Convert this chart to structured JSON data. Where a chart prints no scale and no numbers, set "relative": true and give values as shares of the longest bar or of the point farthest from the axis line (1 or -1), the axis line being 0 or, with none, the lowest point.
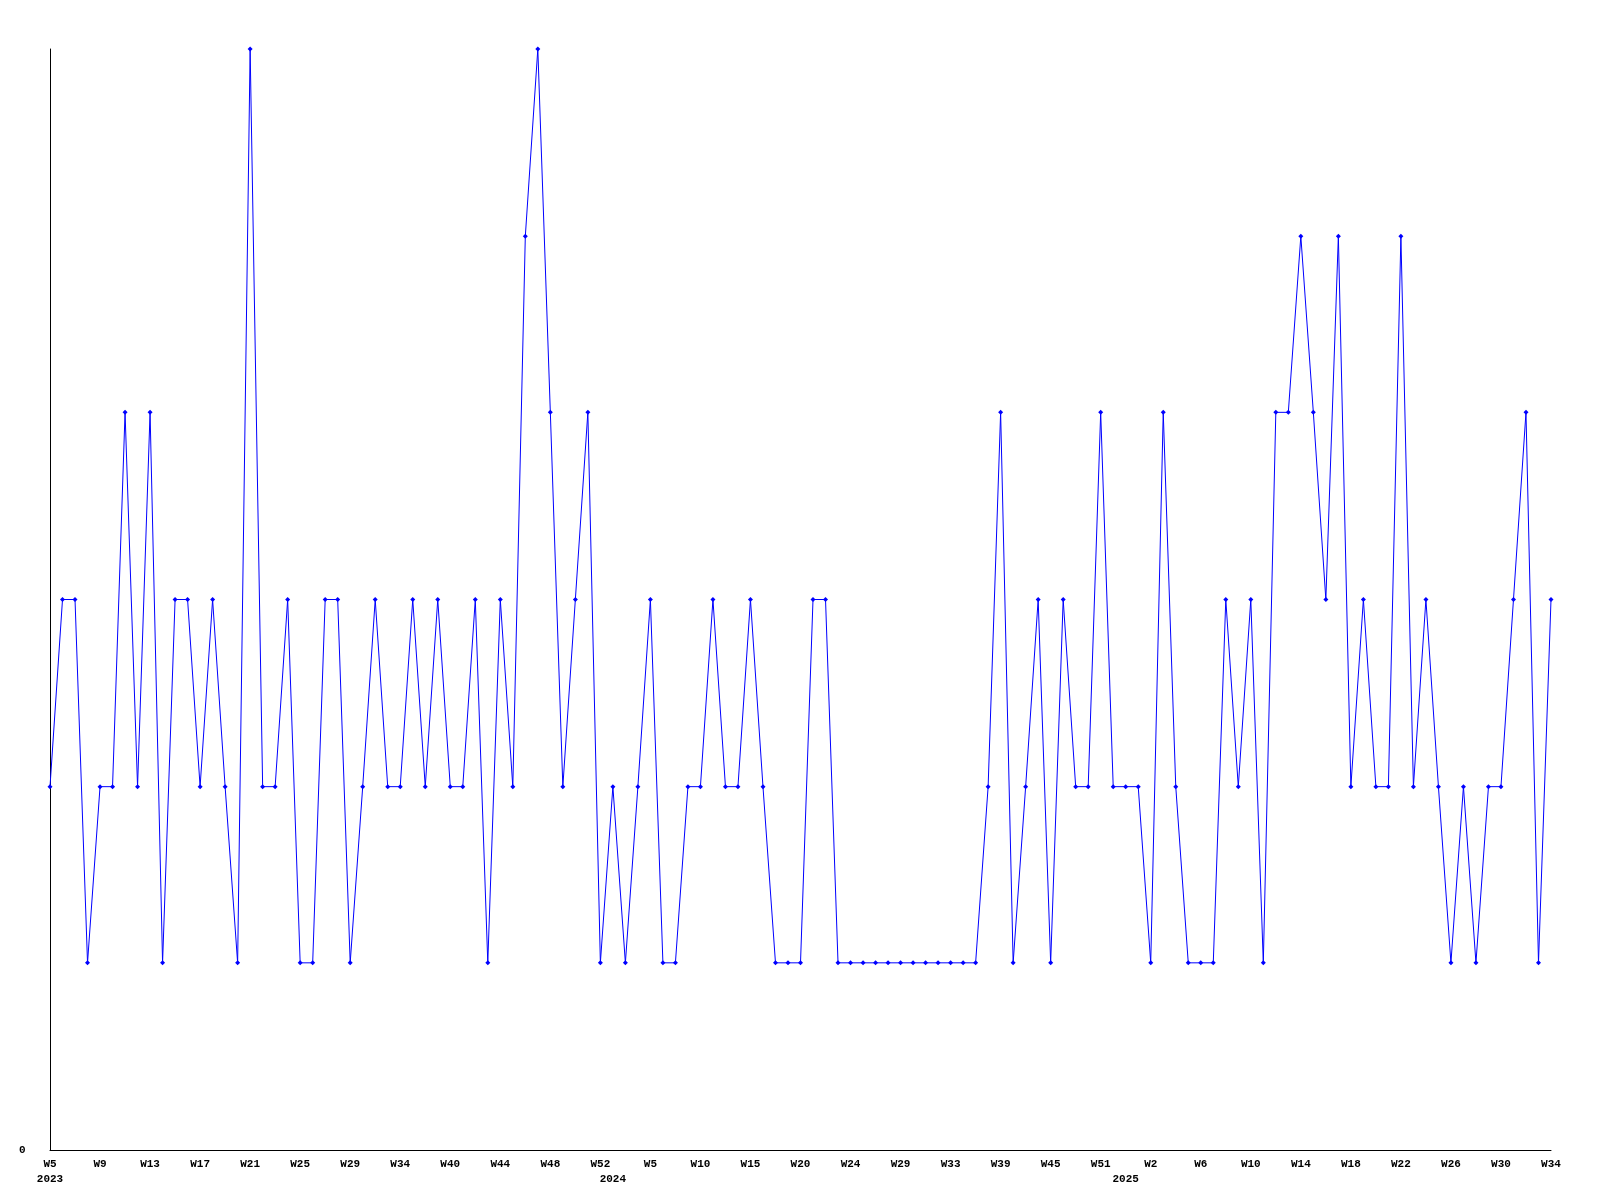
{
  "chart_data": {
    "type": "line",
    "relative": true,
    "marker": "diamond",
    "line_style": "solid",
    "annotations": [
      "0"
    ],
    "categories": [
      "W5\n2023",
      null,
      null,
      null,
      "W9",
      null,
      null,
      null,
      "W13",
      null,
      null,
      null,
      "W17",
      null,
      null,
      null,
      "W21",
      null,
      null,
      null,
      "W25",
      null,
      null,
      null,
      "W29",
      null,
      null,
      null,
      "W34",
      null,
      null,
      null,
      "W40",
      null,
      null,
      null,
      "W44",
      null,
      null,
      null,
      "W48",
      null,
      null,
      null,
      "W52",
      "\n2024",
      null,
      null,
      "W5",
      null,
      null,
      null,
      "W10",
      null,
      null,
      null,
      "W15",
      null,
      null,
      null,
      "W20",
      null,
      null,
      null,
      "W24",
      null,
      null,
      null,
      "W29",
      null,
      null,
      null,
      "W33",
      null,
      null,
      null,
      "W39",
      null,
      null,
      null,
      "W45",
      null,
      null,
      null,
      "W51",
      null,
      "\n2025",
      null,
      "W2",
      null,
      null,
      null,
      "W6",
      null,
      null,
      null,
      "W10",
      null,
      null,
      null,
      "W14",
      null,
      null,
      null,
      "W18",
      null,
      null,
      null,
      "W22",
      null,
      null,
      null,
      "W26",
      null,
      null,
      null,
      "W30",
      null,
      null,
      null,
      "W34"
    ],
    "series": [
      {
        "color": "#0000ff",
        "values": [
          0.33,
          0.5,
          0.5,
          0.17,
          0.33,
          0.33,
          0.67,
          0.33,
          0.67,
          0.17,
          0.5,
          0.5,
          0.33,
          0.5,
          0.33,
          0.17,
          1,
          0.33,
          0.33,
          0.5,
          0.17,
          0.17,
          0.5,
          0.5,
          0.17,
          0.33,
          0.5,
          0.33,
          0.33,
          0.5,
          0.33,
          0.5,
          0.33,
          0.33,
          0.5,
          0.17,
          0.5,
          0.33,
          0.83,
          1,
          0.67,
          0.33,
          0.5,
          0.67,
          0.17,
          0.33,
          0.17,
          0.33,
          0.5,
          0.17,
          0.17,
          0.33,
          0.33,
          0.5,
          0.33,
          0.33,
          0.5,
          0.33,
          0.17,
          0.17,
          0.17,
          0.5,
          0.5,
          0.17,
          0.17,
          0.17,
          0.17,
          0.17,
          0.17,
          0.17,
          0.17,
          0.17,
          0.17,
          0.17,
          0.17,
          0.33,
          0.67,
          0.17,
          0.33,
          0.5,
          0.17,
          0.5,
          0.33,
          0.33,
          0.67,
          0.33,
          0.33,
          0.33,
          0.17,
          0.67,
          0.33,
          0.17,
          0.17,
          0.17,
          0.5,
          0.33,
          0.5,
          0.17,
          0.67,
          0.67,
          0.83,
          0.67,
          0.5,
          0.83,
          0.33,
          0.5,
          0.33,
          0.33,
          0.83,
          0.33,
          0.5,
          0.33,
          0.17,
          0.33,
          0.17,
          0.33,
          0.33,
          0.5,
          0.67,
          0.17,
          0.5
        ]
      }
    ]
  }
}
